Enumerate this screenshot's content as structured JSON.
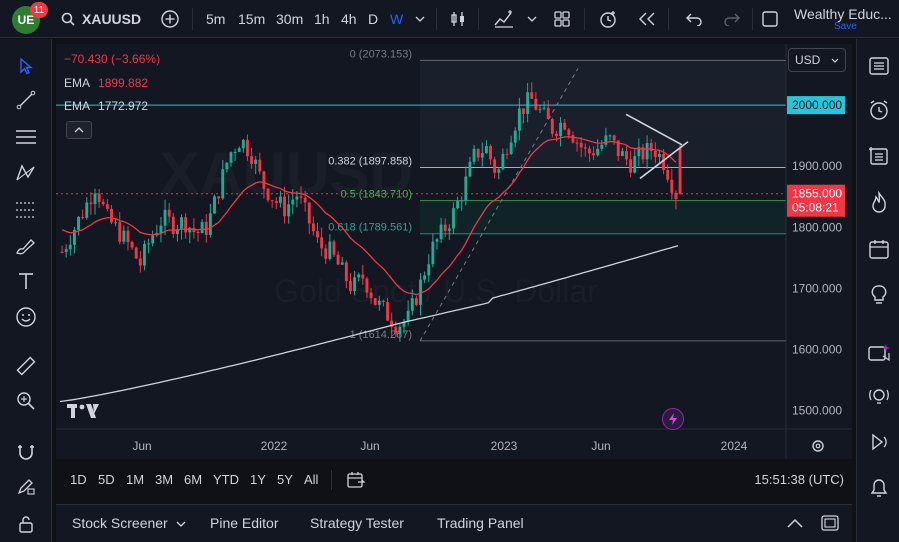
{
  "topbar": {
    "logo_text": "UE",
    "notifications": "11",
    "symbol": "XAUUSD",
    "intervals": [
      "5m",
      "15m",
      "30m",
      "1h",
      "4h",
      "D",
      "W"
    ],
    "active_interval": "W",
    "account_name": "Wealthy Educ...",
    "save_label": "Save"
  },
  "legend": {
    "change": "−70.430 (−3.66%)",
    "ema1_label": "EMA",
    "ema1_value": "1899.882",
    "ema2_label": "EMA",
    "ema2_value": "1772.972",
    "collapse_icon": "chevron-up-icon"
  },
  "chart": {
    "currency": "USD",
    "watermark_symbol": "XAUUSD",
    "watermark_name": "Gold Spot / U.S. Dollar",
    "price_labels": [
      "2000.000",
      "1900.000",
      "1800.000",
      "1700.000",
      "1600.000",
      "1500.000"
    ],
    "current_price": "1855.000",
    "countdown": "05:08:21",
    "highlight_level": "2000.000",
    "x_labels": [
      "Jun",
      "2022",
      "Jun",
      "2023",
      "Jun",
      "2024"
    ],
    "fib_levels": [
      {
        "ratio": "0",
        "price": "2073.153"
      },
      {
        "ratio": "0.382",
        "price": "1897.858"
      },
      {
        "ratio": "0.5",
        "price": "1843.710"
      },
      {
        "ratio": "0.618",
        "price": "1789.561"
      },
      {
        "ratio": "1",
        "price": "1614.267"
      }
    ],
    "colors": {
      "up": "#22ab94",
      "down": "#f23645",
      "ema_fast": "#f23645",
      "ema_slow": "#d1d4dc",
      "level": "#26c6da"
    }
  },
  "chart_data": {
    "type": "candlestick",
    "symbol": "XAUUSD",
    "title": "Gold Spot / U.S. Dollar",
    "timeframe": "W",
    "ylim": [
      1470,
      2100
    ],
    "y_ticks": [
      1500,
      1600,
      1700,
      1800,
      1900,
      2000
    ],
    "x_ticks": [
      "Jun",
      "2022",
      "Jun",
      "2023",
      "Jun",
      "2024"
    ],
    "close_path": [
      1760,
      1795,
      1830,
      1870,
      1815,
      1795,
      1770,
      1740,
      1785,
      1815,
      1805,
      1810,
      1790,
      1800,
      1860,
      1920,
      1945,
      1920,
      1870,
      1845,
      1830,
      1855,
      1815,
      1770,
      1760,
      1730,
      1700,
      1720,
      1680,
      1660,
      1640,
      1650,
      1700,
      1760,
      1790,
      1820,
      1865,
      1920,
      1930,
      1885,
      1945,
      1990,
      2010,
      1985,
      1960,
      1975,
      1945,
      1920,
      1930,
      1945,
      1920,
      1905,
      1920,
      1930,
      1905,
      1855
    ],
    "current_price": 1855.0,
    "ema_fast_last": 1899.882,
    "ema_slow_last": 1772.972,
    "horizontal_levels": [
      2000,
      1855
    ],
    "fibonacci": [
      [
        0,
        2073.153
      ],
      [
        0.382,
        1897.858
      ],
      [
        0.5,
        1843.71
      ],
      [
        0.618,
        1789.561
      ],
      [
        1,
        1614.267
      ]
    ]
  },
  "left_tools": [
    "cursor-icon",
    "trend-line-icon",
    "horizontal-lines-icon",
    "pattern-icon",
    "fib-icon",
    "brush-icon",
    "text-icon",
    "emoji-icon",
    "ruler-icon",
    "zoom-icon",
    "magnet-icon",
    "lock-drawing-icon",
    "lock-icon"
  ],
  "right_tools": [
    "watchlist-icon",
    "alarm-icon",
    "news-icon",
    "hot-icon",
    "calendar-icon",
    "ideas-icon",
    "chat-icon",
    "signals-icon",
    "replay-icon",
    "notification-icon"
  ],
  "rangebar": {
    "ranges": [
      "1D",
      "5D",
      "1M",
      "3M",
      "6M",
      "YTD",
      "1Y",
      "5Y",
      "All"
    ],
    "clock": "15:51:38 (UTC)"
  },
  "bottombar": {
    "tabs": [
      "Stock Screener",
      "Pine Editor",
      "Strategy Tester",
      "Trading Panel"
    ]
  }
}
